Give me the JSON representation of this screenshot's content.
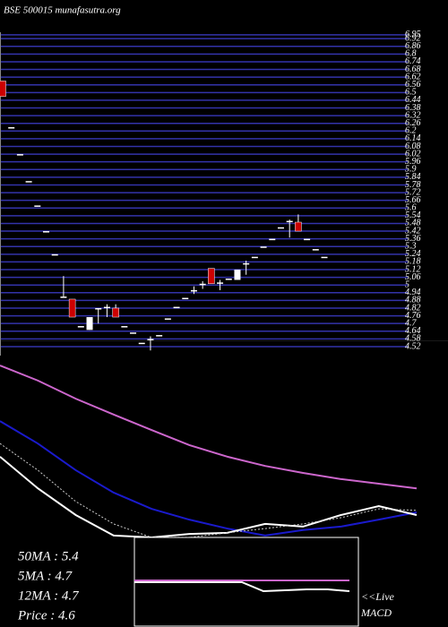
{
  "chart_data": [
    {
      "type": "candlestick",
      "title": "BSE 500015 munafasutra.org",
      "open": [
        6.59,
        6.23,
        6.02,
        5.81,
        5.62,
        5.42,
        5.24,
        4.91,
        4.89,
        4.68,
        4.65,
        4.81,
        4.82,
        4.82,
        4.68,
        4.63,
        4.55,
        4.58,
        4.61,
        4.74,
        4.83,
        4.9,
        4.96,
        5.01,
        5.13,
        5.01,
        5.05,
        5.04,
        5.16,
        5.22,
        5.3,
        5.36,
        5.45,
        5.49,
        5.49,
        5.36,
        5.28,
        5.22
      ],
      "high": [
        6.59,
        6.23,
        6.02,
        5.81,
        5.62,
        5.42,
        5.24,
        5.07,
        4.89,
        4.68,
        4.75,
        4.82,
        4.85,
        4.85,
        4.68,
        4.63,
        4.55,
        4.6,
        4.61,
        4.74,
        4.83,
        4.9,
        4.99,
        5.03,
        5.13,
        5.04,
        5.05,
        5.12,
        5.19,
        5.22,
        5.3,
        5.36,
        5.45,
        5.51,
        5.55,
        5.36,
        5.28,
        5.22
      ],
      "low": [
        6.47,
        6.23,
        6.02,
        5.81,
        5.62,
        5.42,
        5.24,
        4.91,
        4.75,
        4.68,
        4.65,
        4.7,
        4.75,
        4.75,
        4.68,
        4.63,
        4.55,
        4.49,
        4.61,
        4.74,
        4.83,
        4.9,
        4.93,
        4.97,
        5.01,
        4.96,
        5.05,
        5.04,
        5.08,
        5.22,
        5.3,
        5.36,
        5.45,
        5.37,
        5.42,
        5.36,
        5.28,
        5.22
      ],
      "close": [
        6.47,
        6.23,
        6.02,
        5.81,
        5.62,
        5.42,
        5.24,
        4.91,
        4.75,
        4.68,
        4.75,
        4.82,
        4.83,
        4.75,
        4.68,
        4.63,
        4.55,
        4.58,
        4.61,
        4.74,
        4.83,
        4.9,
        4.96,
        5.01,
        5.01,
        5.02,
        5.05,
        5.12,
        5.17,
        5.22,
        5.3,
        5.36,
        5.45,
        5.5,
        5.42,
        5.36,
        5.28,
        5.22
      ],
      "up_color": "#ffffff",
      "down_color": "#cc0000",
      "grid_color": "#3333aa",
      "ylim": [
        4.45,
        6.97
      ],
      "yticks": [
        6.95,
        6.92,
        6.86,
        6.8,
        6.74,
        6.68,
        6.62,
        6.56,
        6.5,
        6.44,
        6.38,
        6.32,
        6.26,
        6.2,
        6.14,
        6.08,
        6.02,
        5.96,
        5.9,
        5.84,
        5.78,
        5.72,
        5.66,
        5.6,
        5.54,
        5.48,
        5.42,
        5.36,
        5.3,
        5.24,
        5.18,
        5.12,
        5.06,
        5,
        4.94,
        4.88,
        4.82,
        4.76,
        4.7,
        4.64,
        4.58,
        4.52
      ],
      "grid": true
    },
    {
      "type": "line",
      "x": [
        0,
        1,
        2,
        3,
        4,
        5,
        6,
        7,
        8,
        9,
        10,
        11
      ],
      "xlim": [
        0,
        11
      ],
      "ylim": [
        3.9,
        9.0
      ],
      "series": [
        {
          "color": "#cc66cc",
          "values": [
            8.35,
            7.96,
            7.49,
            7.08,
            6.68,
            6.29,
            5.99,
            5.75,
            5.57,
            5.41,
            5.29,
            5.17
          ]
        },
        {
          "color": "#1a1acc",
          "values": [
            6.91,
            6.33,
            5.64,
            5.06,
            4.64,
            4.36,
            4.13,
            3.95,
            4.09,
            4.18,
            4.36,
            4.55
          ]
        },
        {
          "color": "#ffffff",
          "values": [
            5.99,
            5.17,
            4.48,
            3.95,
            3.9,
            3.99,
            4.02,
            4.25,
            4.18,
            4.48,
            4.71,
            4.48
          ]
        },
        {
          "color": "#cccccc",
          "dashed": true,
          "values": [
            6.33,
            5.64,
            4.83,
            4.25,
            3.9,
            3.9,
            4.02,
            4.13,
            4.25,
            4.41,
            4.64,
            4.6
          ]
        }
      ],
      "annotations": [
        "50MA : 5.4",
        "5MA : 4.7",
        "12MA : 4.7",
        "Price  : 4.6"
      ]
    },
    {
      "type": "line",
      "x": [
        0,
        1,
        2,
        3,
        4,
        5,
        6,
        7,
        8,
        9,
        10
      ],
      "xlim": [
        0,
        10
      ],
      "ylim": [
        -1,
        1
      ],
      "series": [
        {
          "color": "#cc66cc",
          "values": [
            0.04,
            0.04,
            0.04,
            0.04,
            0.04,
            0.04,
            0.04,
            0.04,
            0.04,
            0.04,
            0.04
          ]
        },
        {
          "color": "#ffffff",
          "values": [
            0,
            0,
            0,
            0,
            0,
            0,
            -0.2,
            -0.18,
            -0.16,
            -0.16,
            -0.2
          ]
        }
      ],
      "annotations": [
        "<<Live",
        "MACD"
      ]
    }
  ]
}
